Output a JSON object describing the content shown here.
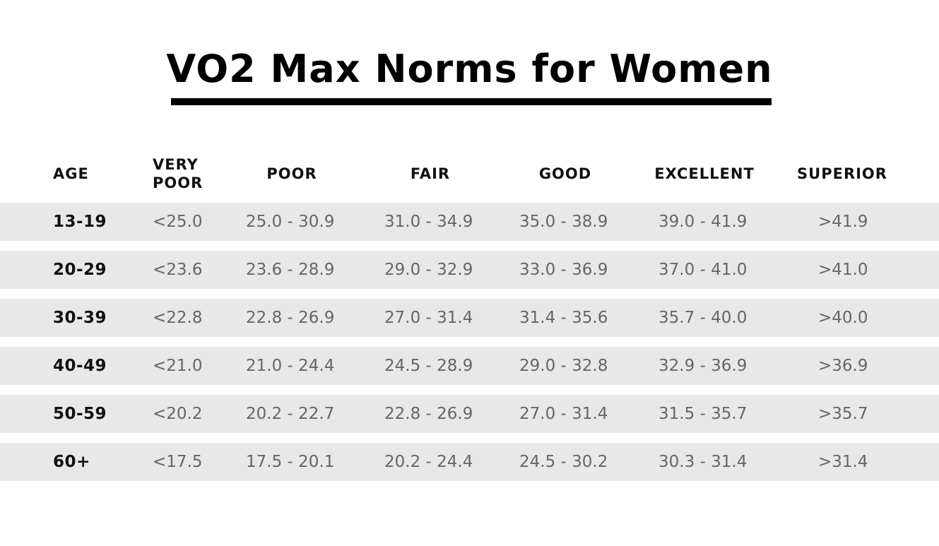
{
  "title": "VO2 Max Norms for Women",
  "table": {
    "headers": [
      "AGE",
      "VERY\nPOOR",
      "POOR",
      "FAIR",
      "GOOD",
      "EXCELLENT",
      "SUPERIOR"
    ],
    "rows": [
      [
        "13-19",
        "<25.0",
        "25.0 - 30.9",
        "31.0 - 34.9",
        "35.0 - 38.9",
        "39.0 - 41.9",
        ">41.9"
      ],
      [
        "20-29",
        "<23.6",
        "23.6 - 28.9",
        "29.0 - 32.9",
        "33.0 - 36.9",
        "37.0 - 41.0",
        ">41.0"
      ],
      [
        "30-39",
        "<22.8",
        "22.8 - 26.9",
        "27.0 - 31.4",
        "31.4 - 35.6",
        "35.7 - 40.0",
        ">40.0"
      ],
      [
        "40-49",
        "<21.0",
        "21.0 - 24.4",
        "24.5 - 28.9",
        "29.0 - 32.8",
        "32.9 - 36.9",
        ">36.9"
      ],
      [
        "50-59",
        "<20.2",
        "20.2 - 22.7",
        "22.8 - 26.9",
        "27.0 - 31.4",
        "31.5 - 35.7",
        ">35.7"
      ],
      [
        "60+",
        "<17.5",
        "17.5 - 20.1",
        "20.2 - 24.4",
        "24.5 - 30.2",
        "30.3 - 31.4",
        ">31.4"
      ]
    ]
  }
}
